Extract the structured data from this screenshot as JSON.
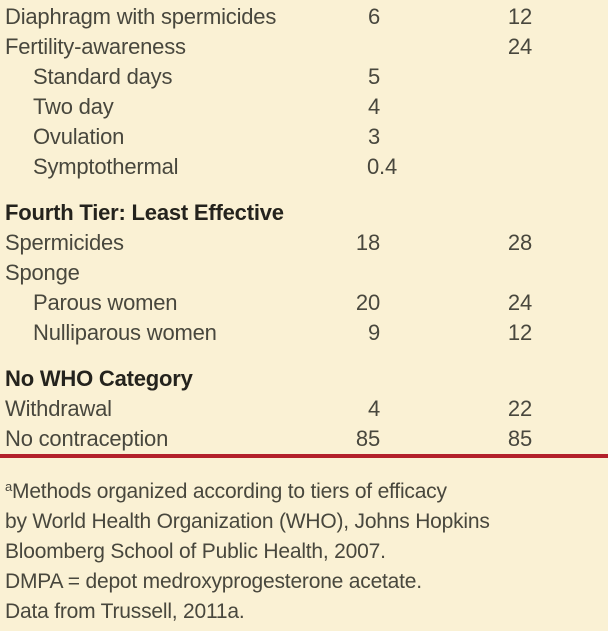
{
  "page": {
    "background_color": "#faf1d4",
    "rule_color": "#b3202a",
    "body_text_color": "#48473d",
    "header_text_color": "#24231d"
  },
  "table": {
    "rows": [
      {
        "type": "item",
        "label": "Diaphragm with spermicides",
        "col2": "6",
        "col3": "12"
      },
      {
        "type": "item",
        "label": "Fertility-awareness",
        "col2": "",
        "col3": "24"
      },
      {
        "type": "subitem",
        "label": "Standard days",
        "col2": "5",
        "col3": ""
      },
      {
        "type": "subitem",
        "label": "Two day",
        "col2": "4",
        "col3": ""
      },
      {
        "type": "subitem",
        "label": "Ovulation",
        "col2": "3",
        "col3": ""
      },
      {
        "type": "subitem",
        "label": "Symptothermal",
        "col2": "0.4",
        "col3": ""
      },
      {
        "type": "section",
        "label": "Fourth Tier: Least Effective"
      },
      {
        "type": "item",
        "label": "Spermicides",
        "col2": "18",
        "col3": "28"
      },
      {
        "type": "item",
        "label": "Sponge",
        "col2": "",
        "col3": ""
      },
      {
        "type": "subitem",
        "label": "Parous women",
        "col2": "20",
        "col3": "24"
      },
      {
        "type": "subitem",
        "label": "Nulliparous women",
        "col2": "9",
        "col3": "12"
      },
      {
        "type": "section",
        "label": "No WHO Category"
      },
      {
        "type": "item",
        "label": "Withdrawal",
        "col2": "4",
        "col3": "22"
      },
      {
        "type": "item",
        "label": "No contraception",
        "col2": "85",
        "col3": "85"
      }
    ]
  },
  "footnote": {
    "superscript": "a",
    "lines": [
      "Methods organized according to tiers of efficacy",
      "by World Health Organization (WHO), Johns Hopkins",
      "Bloomberg School of Public Health, 2007.",
      "DMPA = depot medroxyprogesterone acetate.",
      "Data from Trussell, 2011a."
    ]
  }
}
